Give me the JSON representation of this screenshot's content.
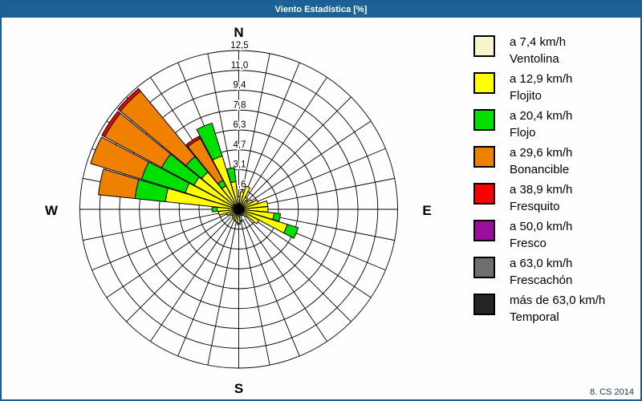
{
  "window": {
    "title": "Viento Estadística [%]",
    "footer": "8. CS 2014"
  },
  "colors": {
    "titlebar": "#1d6296",
    "border": "#1d5c94",
    "grid": "#000000",
    "background": "#fdfefd",
    "footer_text": "#1f3864"
  },
  "legend": {
    "items": [
      {
        "speed": "a 7,4 km/h",
        "name": "Ventolina",
        "color": "#f8f4ce"
      },
      {
        "speed": "a 12,9 km/h",
        "name": "Flojito",
        "color": "#ffff00"
      },
      {
        "speed": "a 20,4 km/h",
        "name": "Flojo",
        "color": "#00e000"
      },
      {
        "speed": "a 29,6 km/h",
        "name": "Bonancible",
        "color": "#f08000"
      },
      {
        "speed": "a 38,9 km/h",
        "name": "Fresquito",
        "color": "#fa0000"
      },
      {
        "speed": "a 50,0 km/h",
        "name": "Fresco",
        "color": "#9b0d9b"
      },
      {
        "speed": "a 63,0 km/h",
        "name": "Frescachón",
        "color": "#6f6f6f"
      },
      {
        "speed": "más de 63,0 km/h",
        "name": "Temporal",
        "color": "#252525"
      }
    ]
  },
  "chart_data": {
    "type": "wind-rose",
    "title": "Viento Estadística [%]",
    "units": "%",
    "rmax": 12.5,
    "rings": 8,
    "ring_values": [
      1.6,
      3.1,
      4.7,
      6.3,
      7.8,
      9.4,
      11.0,
      12.5
    ],
    "ring_labels": [
      "1,6",
      "3,1",
      "4,7",
      "6,3",
      "7,8",
      "9,4",
      "11,0",
      "12,5"
    ],
    "sector_step_deg": 11.25,
    "compass": {
      "n": "N",
      "e": "E",
      "s": "S",
      "w": "W"
    },
    "classes_note": "cumulative tops per class order: Ventolina, Flojito, Flojo, Bonancible, Fresquito (Fresco/Frescachón/Temporal have no visible petals)",
    "directions": [
      {
        "deg": 0.0,
        "cum": [
          0.5,
          1.0,
          0,
          0,
          0
        ]
      },
      {
        "deg": 11.25,
        "cum": [
          0.4,
          1.4,
          0,
          0,
          0
        ]
      },
      {
        "deg": 22.5,
        "cum": [
          0.4,
          1.9,
          0,
          0,
          0
        ]
      },
      {
        "deg": 33.75,
        "cum": [
          0.3,
          1.1,
          0,
          0,
          0
        ]
      },
      {
        "deg": 45.0,
        "cum": [
          0.3,
          0.9,
          0,
          0,
          0
        ]
      },
      {
        "deg": 56.25,
        "cum": [
          0.3,
          1.2,
          0,
          0,
          0
        ]
      },
      {
        "deg": 67.5,
        "cum": [
          0.4,
          1.6,
          0,
          0,
          0
        ]
      },
      {
        "deg": 78.75,
        "cum": [
          0.4,
          2.3,
          0,
          0,
          0
        ]
      },
      {
        "deg": 90.0,
        "cum": [
          0.4,
          2.3,
          0,
          0,
          0
        ]
      },
      {
        "deg": 101.25,
        "cum": [
          0.4,
          2.8,
          3.3,
          0,
          0
        ]
      },
      {
        "deg": 112.5,
        "cum": [
          0.4,
          4.0,
          4.9,
          0,
          0
        ]
      },
      {
        "deg": 123.75,
        "cum": [
          0.3,
          1.8,
          0,
          0,
          0
        ]
      },
      {
        "deg": 135.0,
        "cum": [
          0.3,
          0.8,
          0,
          0,
          0
        ]
      },
      {
        "deg": 146.25,
        "cum": [
          0.3,
          0.6,
          0,
          0,
          0
        ]
      },
      {
        "deg": 157.5,
        "cum": [
          0.3,
          0.5,
          0,
          0,
          0
        ]
      },
      {
        "deg": 168.75,
        "cum": [
          0.9,
          1.0,
          0,
          0,
          0
        ]
      },
      {
        "deg": 180.0,
        "cum": [
          1.1,
          1.2,
          0,
          0,
          0
        ]
      },
      {
        "deg": 191.25,
        "cum": [
          0.4,
          1.0,
          0,
          0,
          0
        ]
      },
      {
        "deg": 202.5,
        "cum": [
          0.4,
          0.9,
          0,
          0,
          0
        ]
      },
      {
        "deg": 213.75,
        "cum": [
          0.3,
          0.8,
          0,
          0,
          0
        ]
      },
      {
        "deg": 225.0,
        "cum": [
          0.3,
          0.7,
          0,
          0,
          0
        ]
      },
      {
        "deg": 236.25,
        "cum": [
          0.3,
          0.8,
          0,
          0,
          0
        ]
      },
      {
        "deg": 247.5,
        "cum": [
          0.3,
          1.0,
          0,
          0,
          0
        ]
      },
      {
        "deg": 258.75,
        "cum": [
          0.4,
          1.6,
          0,
          0,
          0
        ]
      },
      {
        "deg": 270.0,
        "cum": [
          0.4,
          1.7,
          2.1,
          0,
          0
        ]
      },
      {
        "deg": 281.25,
        "cum": [
          0.5,
          5.8,
          8.2,
          11.1,
          0
        ]
      },
      {
        "deg": 292.5,
        "cum": [
          0.5,
          4.4,
          8.0,
          12.2,
          0
        ]
      },
      {
        "deg": 303.75,
        "cum": [
          0.5,
          4.0,
          6.9,
          12.0,
          12.25
        ]
      },
      {
        "deg": 315.0,
        "cum": [
          0.5,
          3.8,
          5.4,
          12.1,
          12.35
        ]
      },
      {
        "deg": 326.25,
        "cum": [
          0.4,
          2.1,
          2.6,
          6.35,
          6.55
        ]
      },
      {
        "deg": 337.5,
        "cum": [
          0.4,
          4.4,
          7.1,
          0,
          0
        ]
      },
      {
        "deg": 348.75,
        "cum": [
          0.4,
          2.2,
          3.3,
          0,
          0
        ]
      }
    ]
  }
}
